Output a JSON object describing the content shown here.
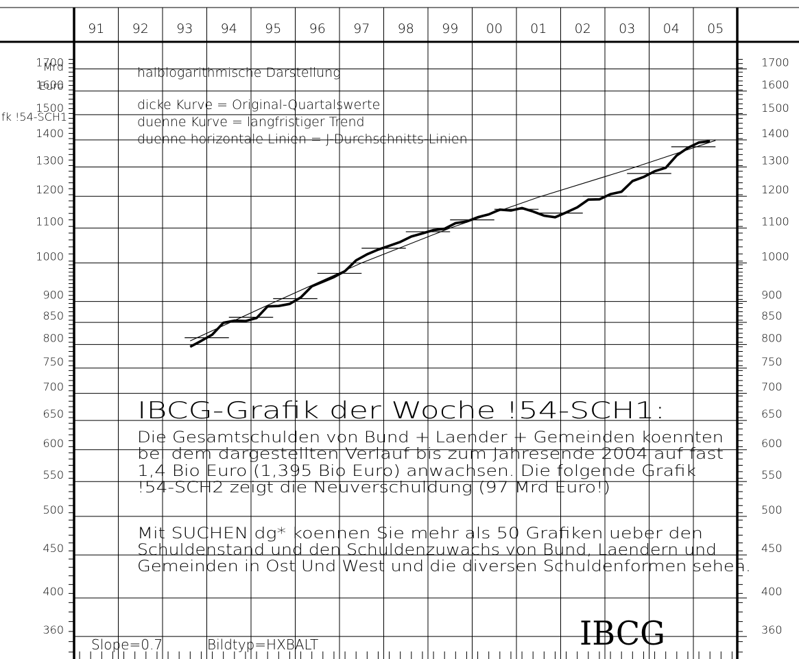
{
  "chart_data": {
    "type": "line",
    "scale": "log",
    "y_unit": "Mrd\nEuro",
    "years": [
      "91",
      "92",
      "93",
      "94",
      "95",
      "96",
      "97",
      "98",
      "99",
      "00",
      "01",
      "02",
      "03",
      "04",
      "05"
    ],
    "yticks": [
      360,
      400,
      450,
      500,
      550,
      600,
      650,
      700,
      750,
      800,
      850,
      900,
      1000,
      1100,
      1200,
      1300,
      1400,
      1500,
      1600,
      1700
    ],
    "ylim": [
      340,
      1760
    ],
    "quarterly_values": [
      {
        "x": 1993.125,
        "y": 795
      },
      {
        "x": 1993.375,
        "y": 808
      },
      {
        "x": 1993.625,
        "y": 822
      },
      {
        "x": 1993.875,
        "y": 849
      },
      {
        "x": 1994.125,
        "y": 854
      },
      {
        "x": 1994.375,
        "y": 853
      },
      {
        "x": 1994.625,
        "y": 860
      },
      {
        "x": 1994.875,
        "y": 888
      },
      {
        "x": 1995.125,
        "y": 889
      },
      {
        "x": 1995.375,
        "y": 894
      },
      {
        "x": 1995.625,
        "y": 910
      },
      {
        "x": 1995.875,
        "y": 938
      },
      {
        "x": 1996.125,
        "y": 950
      },
      {
        "x": 1996.375,
        "y": 962
      },
      {
        "x": 1996.625,
        "y": 978
      },
      {
        "x": 1996.875,
        "y": 1007
      },
      {
        "x": 1997.125,
        "y": 1024
      },
      {
        "x": 1997.375,
        "y": 1037
      },
      {
        "x": 1997.625,
        "y": 1048
      },
      {
        "x": 1997.875,
        "y": 1059
      },
      {
        "x": 1998.125,
        "y": 1075
      },
      {
        "x": 1998.375,
        "y": 1084
      },
      {
        "x": 1998.625,
        "y": 1094
      },
      {
        "x": 1998.875,
        "y": 1098
      },
      {
        "x": 1999.125,
        "y": 1115
      },
      {
        "x": 1999.375,
        "y": 1120
      },
      {
        "x": 1999.625,
        "y": 1133
      },
      {
        "x": 1999.875,
        "y": 1142
      },
      {
        "x": 2000.125,
        "y": 1157
      },
      {
        "x": 2000.375,
        "y": 1154
      },
      {
        "x": 2000.625,
        "y": 1162
      },
      {
        "x": 2000.875,
        "y": 1151
      },
      {
        "x": 2001.125,
        "y": 1138
      },
      {
        "x": 2001.375,
        "y": 1133
      },
      {
        "x": 2001.625,
        "y": 1148
      },
      {
        "x": 2001.875,
        "y": 1164
      },
      {
        "x": 2002.125,
        "y": 1189
      },
      {
        "x": 2002.375,
        "y": 1190
      },
      {
        "x": 2002.625,
        "y": 1207
      },
      {
        "x": 2002.875,
        "y": 1215
      },
      {
        "x": 2003.125,
        "y": 1251
      },
      {
        "x": 2003.375,
        "y": 1265
      },
      {
        "x": 2003.625,
        "y": 1285
      },
      {
        "x": 2003.875,
        "y": 1297
      },
      {
        "x": 2004.125,
        "y": 1342
      },
      {
        "x": 2004.375,
        "y": 1370
      },
      {
        "x": 2004.625,
        "y": 1390
      },
      {
        "x": 2004.875,
        "y": 1395
      }
    ],
    "annual_averages": [
      {
        "year": 1993,
        "y": 815
      },
      {
        "year": 1994,
        "y": 862
      },
      {
        "year": 1995,
        "y": 907
      },
      {
        "year": 1996,
        "y": 972
      },
      {
        "year": 1997,
        "y": 1041
      },
      {
        "year": 1998,
        "y": 1089
      },
      {
        "year": 1999,
        "y": 1125
      },
      {
        "year": 2000,
        "y": 1158
      },
      {
        "year": 2001,
        "y": 1146
      },
      {
        "year": 2002,
        "y": 1200
      },
      {
        "year": 2003,
        "y": 1277
      },
      {
        "year": 2004,
        "y": 1374
      }
    ],
    "trend": [
      {
        "x": 1993.125,
        "y": 808
      },
      {
        "x": 1995,
        "y": 897
      },
      {
        "x": 1997,
        "y": 1000
      },
      {
        "x": 1999,
        "y": 1100
      },
      {
        "x": 2001,
        "y": 1197
      },
      {
        "x": 2003,
        "y": 1290
      },
      {
        "x": 2005,
        "y": 1398
      }
    ],
    "notes": [
      "halblogarithmische Darstellung",
      "dicke Kurve = Original-Quartalswerte",
      "duenne Kurve = langfristiger Trend",
      "duenne horizontale Linien = J-Durchschnitts-Linien"
    ],
    "left_label": "fk !54-SCH1",
    "headline": "IBCG-Grafik der Woche !54-SCH1:",
    "paragraph1": [
      "Die Gesamtschulden von Bund + Laender + Gemeinden koennten",
      "bei dem dargestellten Verlauf bis zum Jahresende 2004 auf fast",
      "1,4 Bio Euro (1,395 Bio Euro) anwachsen. Die folgende Grafik",
      "!54-SCH2 zeigt die Neuverschuldung (97 Mrd Euro!)"
    ],
    "paragraph2": [
      "Mit SUCHEN  dg* koennen Sie mehr als 50 Grafiken ueber den",
      "Schuldenstand und den Schuldenzuwachs von Bund, Laendern und",
      "Gemeinden in Ost Und West und die diversen Schuldenformen sehen."
    ],
    "footer_slope": "Slope=0.7",
    "footer_bildtyp": "Bildtyp=HXBALT",
    "logo": "IBCG"
  }
}
